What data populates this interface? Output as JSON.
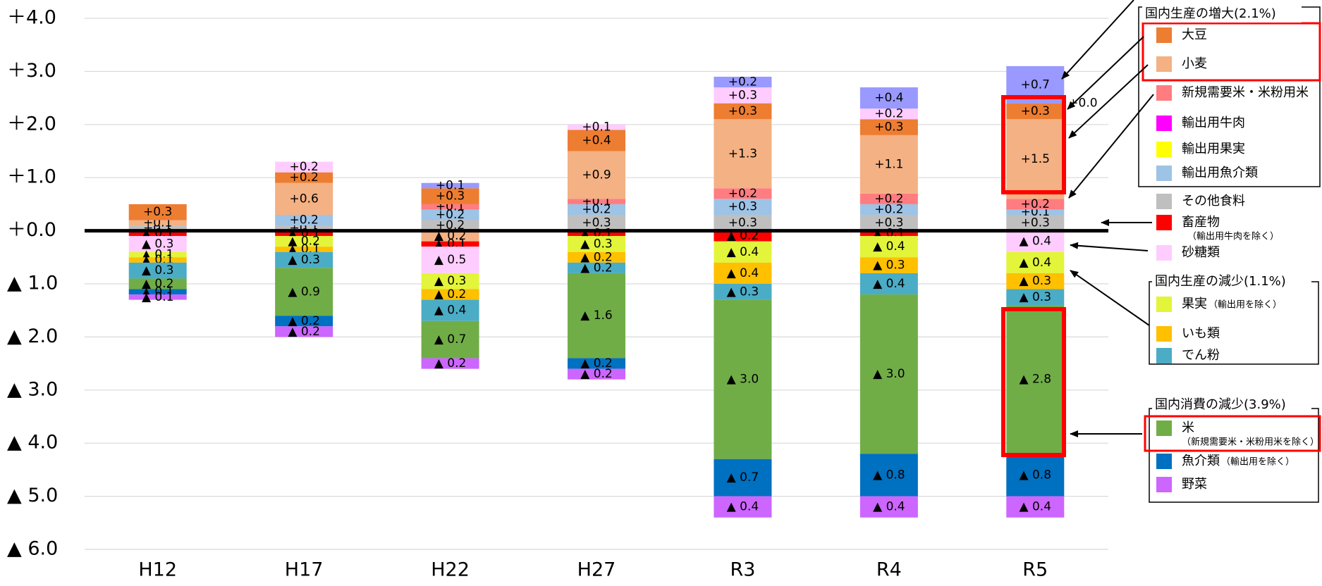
{
  "chart_data": {
    "type": "stacked-bar",
    "categories": [
      "H12",
      "H17",
      "H22",
      "H27",
      "R3",
      "R4",
      "R5"
    ],
    "ylim": [
      -6,
      4
    ],
    "yticks": [
      {
        "value": 4,
        "label": "＋4.0"
      },
      {
        "value": 3,
        "label": "＋3.0"
      },
      {
        "value": 2,
        "label": "＋2.0"
      },
      {
        "value": 1,
        "label": "＋1.0"
      },
      {
        "value": 0,
        "label": "＋0.0"
      },
      {
        "value": -1,
        "label": "▲ 1.0"
      },
      {
        "value": -2,
        "label": "▲ 2.0"
      },
      {
        "value": -3,
        "label": "▲ 3.0"
      },
      {
        "value": -4,
        "label": "▲ 4.0"
      },
      {
        "value": -5,
        "label": "▲ 5.0"
      },
      {
        "value": -6,
        "label": "▲ 6.0"
      }
    ],
    "grid": true,
    "annotations": [
      "国内生産の増大(2.1%)",
      "国内生産の減少(1.1%)",
      "国内消費の減少(3.9%)"
    ],
    "series": [
      {
        "name": "その他食料",
        "color": "#bfbfbf",
        "values": [
          0.1,
          0.1,
          0.2,
          0.3,
          0.3,
          0.3,
          0.3
        ],
        "value_labels": [
          "+0.1",
          "+0.1",
          "+0.2",
          "+0.3",
          "+0.3",
          "+0.3",
          "+0.3"
        ]
      },
      {
        "name": "輸出用魚介類",
        "color": "#9dc3e6",
        "values": [
          null,
          0.2,
          0.2,
          0.2,
          0.3,
          0.2,
          0.1
        ],
        "value_labels": [
          null,
          "+0.2",
          "+0.2",
          "+0.2",
          "+0.3",
          "+0.2",
          "+0.1"
        ]
      },
      {
        "name": "輸出用果実",
        "color": "#ffff00",
        "values": [
          null,
          null,
          null,
          null,
          null,
          null,
          null
        ]
      },
      {
        "name": "輸出用牛肉",
        "color": "#ff00ff",
        "values": [
          null,
          null,
          null,
          null,
          null,
          null,
          null
        ]
      },
      {
        "name": "新規需要米・米粉用米",
        "color": "#ff7c80",
        "values": [
          null,
          null,
          0.1,
          0.1,
          0.2,
          0.2,
          0.2
        ],
        "value_labels": [
          null,
          null,
          "+0.1",
          "+0.1",
          "+0.2",
          "+0.2",
          "+0.2"
        ]
      },
      {
        "name": "小麦",
        "color": "#f4b183",
        "values": [
          0.1,
          0.6,
          -0.2,
          0.9,
          1.3,
          1.1,
          1.5
        ],
        "value_labels": [
          "+0.1",
          "+0.6",
          "▲ 0.2",
          "+0.9",
          "+1.3",
          "+1.1",
          "+1.5"
        ]
      },
      {
        "name": "大豆",
        "color": "#ed7d31",
        "values": [
          0.3,
          0.2,
          0.3,
          0.4,
          0.3,
          0.3,
          0.3
        ],
        "value_labels": [
          "+0.3",
          "+0.2",
          "+0.3",
          "+0.4",
          "+0.3",
          "+0.3",
          "+0.3"
        ]
      },
      {
        "name": "畜産物",
        "note": "（輸出用牛肉を除く）",
        "color": "#ff0000",
        "values": [
          -0.1,
          -0.1,
          -0.1,
          -0.1,
          -0.2,
          -0.1,
          0.0
        ],
        "value_labels": [
          "▲ 0.1",
          "▲ 0.1",
          "▲ 0.1",
          "▲ 0.1",
          "▲ 0.2",
          "▲ 0.1",
          "+0.0"
        ]
      },
      {
        "name": "砂糖類",
        "color": "#ffccff",
        "values": [
          -0.3,
          0.2,
          -0.5,
          0.1,
          0.3,
          0.2,
          -0.4
        ],
        "value_labels": [
          "▲ 0.3",
          "+0.2",
          "▲ 0.5",
          "+0.1",
          "+0.3",
          "+0.2",
          "▲ 0.4"
        ]
      },
      {
        "name": "果実",
        "note": "（輸出用を除く）",
        "color": "#e2f53a",
        "values": [
          -0.1,
          -0.2,
          -0.3,
          -0.3,
          -0.4,
          -0.4,
          -0.4
        ],
        "value_labels": [
          "▲ 0.1",
          "▲ 0.2",
          "▲ 0.3",
          "▲ 0.3",
          "▲ 0.4",
          "▲ 0.4",
          "▲ 0.4"
        ]
      },
      {
        "name": "いも類",
        "color": "#ffc000",
        "values": [
          -0.1,
          -0.1,
          -0.2,
          -0.2,
          -0.4,
          -0.3,
          -0.3
        ],
        "value_labels": [
          "▲ 0.1",
          "▲ 0.1",
          "▲ 0.2",
          "▲ 0.2",
          "▲ 0.4",
          "▲ 0.3",
          "▲ 0.3"
        ]
      },
      {
        "name": "でん粉",
        "color": "#4bacc6",
        "values": [
          -0.3,
          -0.3,
          -0.4,
          -0.2,
          -0.3,
          -0.4,
          -0.3
        ],
        "value_labels": [
          "▲ 0.3",
          "▲ 0.3",
          "▲ 0.4",
          "▲ 0.2",
          "▲ 0.3",
          "▲ 0.4",
          "▲ 0.3"
        ]
      },
      {
        "name": "米",
        "note": "（新規需要米・米粉用米を除く）",
        "color": "#70ad47",
        "values": [
          -0.2,
          -0.9,
          -0.7,
          -1.6,
          -3.0,
          -3.0,
          -2.8
        ],
        "value_labels": [
          "▲ 0.2",
          "▲ 0.9",
          "▲ 0.7",
          "▲ 1.6",
          "▲ 3.0",
          "▲ 3.0",
          "▲ 2.8"
        ]
      },
      {
        "name": "魚介類",
        "note": "（輸出用を除く）",
        "color": "#0070c0",
        "values": [
          -0.1,
          -0.2,
          null,
          -0.2,
          -0.7,
          -0.8,
          -0.8
        ],
        "value_labels": [
          "▲ 0.1",
          "▲ 0.2",
          null,
          "▲ 0.2",
          "▲ 0.7",
          "▲ 0.8",
          "▲ 0.8"
        ]
      },
      {
        "name": "野菜",
        "color": "#cc66ff",
        "values": [
          -0.1,
          -0.2,
          -0.2,
          -0.2,
          -0.4,
          -0.4,
          -0.4
        ],
        "value_labels": [
          "▲ 0.1",
          "▲ 0.2",
          "▲ 0.2",
          "▲ 0.2",
          "▲ 0.4",
          "▲ 0.4",
          "▲ 0.4"
        ]
      },
      {
        "color": "#9999ff",
        "values": [
          null,
          null,
          0.1,
          null,
          0.2,
          0.4,
          0.7
        ],
        "value_labels": [
          null,
          null,
          "+0.1",
          null,
          "+0.2",
          "+0.4",
          "+0.7"
        ]
      }
    ]
  }
}
